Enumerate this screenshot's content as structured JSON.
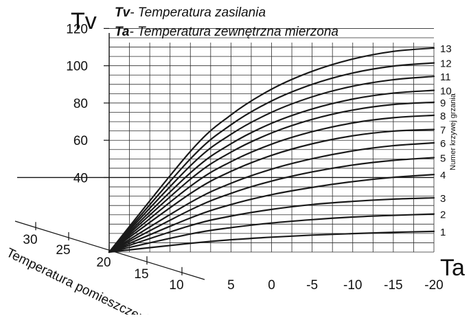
{
  "chart_data": {
    "type": "line",
    "title_lines": [
      {
        "abbr": "Tv",
        "text": "- Temperatura zasilania"
      },
      {
        "abbr": "Ta",
        "text": "- Temperatura zewnętrzna mierzona"
      }
    ],
    "ylabel": "Tv",
    "xlabel": "Ta",
    "y_ticks": [
      40,
      60,
      80,
      100,
      120
    ],
    "ylim": [
      0,
      130
    ],
    "x_ticks": [
      "5",
      "0",
      "-5",
      "-10",
      "-15",
      "-20"
    ],
    "x_values": [
      20,
      10,
      5,
      0,
      -5,
      -10,
      -15,
      -20
    ],
    "room_axis_label": "Temperatura pomieszczenia",
    "room_axis_ticks": [
      "30",
      "25",
      "20",
      "15",
      "10"
    ],
    "curve_axis_label": "Numer krzywej grzania",
    "grid": true,
    "reference_line": {
      "y": 40
    },
    "series": [
      {
        "name": "1",
        "values": [
          0,
          4.7,
          6.6,
          8.0,
          9.1,
          9.9,
          10.6,
          11.1
        ]
      },
      {
        "name": "2",
        "values": [
          0,
          9.7,
          13.1,
          15.6,
          17.4,
          18.8,
          19.7,
          20.4
        ]
      },
      {
        "name": "3",
        "values": [
          0,
          14.2,
          19.3,
          22.9,
          25.5,
          27.2,
          28.4,
          29.1
        ]
      },
      {
        "name": "4",
        "values": [
          0,
          18.3,
          25.5,
          30.8,
          34.7,
          37.8,
          40.1,
          41.6
        ]
      },
      {
        "name": "5",
        "values": [
          0,
          22.6,
          31.5,
          38.1,
          43.0,
          46.7,
          49.2,
          50.7
        ]
      },
      {
        "name": "6",
        "values": [
          0,
          26.6,
          36.9,
          44.5,
          50.1,
          54.3,
          57.1,
          58.6
        ]
      },
      {
        "name": "7",
        "values": [
          0,
          31.4,
          43.3,
          51.9,
          58.1,
          62.4,
          64.9,
          65.8
        ]
      },
      {
        "name": "8",
        "values": [
          0,
          35.3,
          48.5,
          57.9,
          64.6,
          69.3,
          72.1,
          73.4
        ]
      },
      {
        "name": "9",
        "values": [
          0,
          39.1,
          53.6,
          63.9,
          71.2,
          76.2,
          79.2,
          80.4
        ]
      },
      {
        "name": "10",
        "values": [
          0,
          42.5,
          58.1,
          69.1,
          76.8,
          82.1,
          85.3,
          86.8
        ]
      },
      {
        "name": "11",
        "values": [
          0,
          46.3,
          63.2,
          75.0,
          83.3,
          89.0,
          92.5,
          94.3
        ]
      },
      {
        "name": "12",
        "values": [
          0,
          50.0,
          68.3,
          81.1,
          90.0,
          96.1,
          99.8,
          101.5
        ]
      },
      {
        "name": "13",
        "values": [
          0,
          54.0,
          73.6,
          87.4,
          97.0,
          103.6,
          107.7,
          109.5
        ]
      }
    ]
  },
  "colors": {
    "curve": "#1a1a1a",
    "grid": "#2a2a2a",
    "text": "#111111"
  }
}
